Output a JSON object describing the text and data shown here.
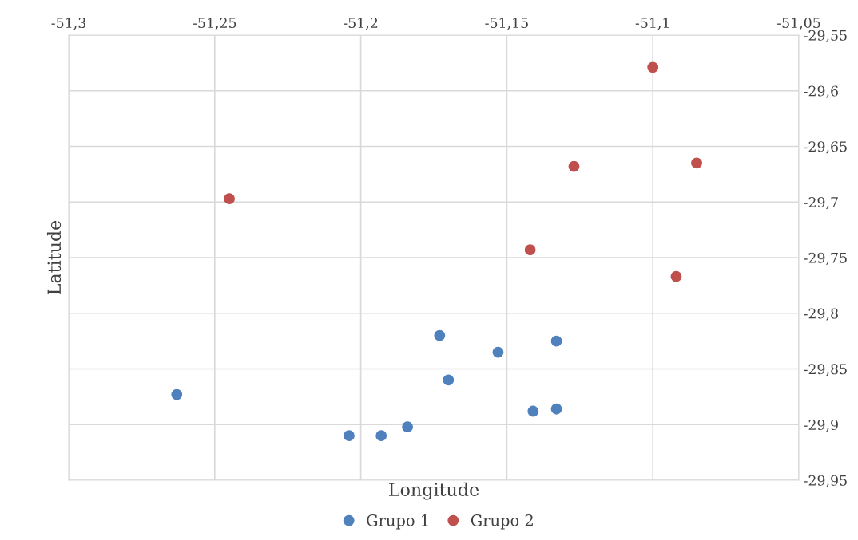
{
  "chart_data": {
    "type": "scatter",
    "xlabel": "Longitude",
    "ylabel": "Latitude",
    "xlim": [
      -51.3,
      -51.05
    ],
    "ylim": [
      -29.95,
      -29.55
    ],
    "xticks": [
      {
        "value": -51.3,
        "label": "-51,3"
      },
      {
        "value": -51.25,
        "label": "-51,25"
      },
      {
        "value": -51.2,
        "label": "-51,2"
      },
      {
        "value": -51.15,
        "label": "-51,15"
      },
      {
        "value": -51.1,
        "label": "-51,1"
      },
      {
        "value": -51.05,
        "label": "-51,05"
      }
    ],
    "yticks": [
      {
        "value": -29.95,
        "label": "-29,95"
      },
      {
        "value": -29.9,
        "label": "-29,9"
      },
      {
        "value": -29.85,
        "label": "-29,85"
      },
      {
        "value": -29.8,
        "label": "-29,8"
      },
      {
        "value": -29.75,
        "label": "-29,75"
      },
      {
        "value": -29.7,
        "label": "-29,7"
      },
      {
        "value": -29.65,
        "label": "-29,65"
      },
      {
        "value": -29.6,
        "label": "-29,6"
      },
      {
        "value": -29.55,
        "label": "-29,55"
      }
    ],
    "grid": true,
    "legend": "bottom",
    "marker": "circle",
    "series": [
      {
        "name": "Grupo 1",
        "color": "#4f81bd",
        "x": [
          -51.263,
          -51.204,
          -51.193,
          -51.184,
          -51.173,
          -51.17,
          -51.153,
          -51.133,
          -51.141,
          -51.133
        ],
        "values": [
          -29.873,
          -29.91,
          -29.91,
          -29.902,
          -29.82,
          -29.86,
          -29.835,
          -29.825,
          -29.888,
          -29.886
        ]
      },
      {
        "name": "Grupo 2",
        "color": "#c0504d",
        "x": [
          -51.245,
          -51.1,
          -51.127,
          -51.085,
          -51.142,
          -51.092
        ],
        "values": [
          -29.697,
          -29.579,
          -29.668,
          -29.665,
          -29.743,
          -29.767
        ]
      }
    ]
  }
}
